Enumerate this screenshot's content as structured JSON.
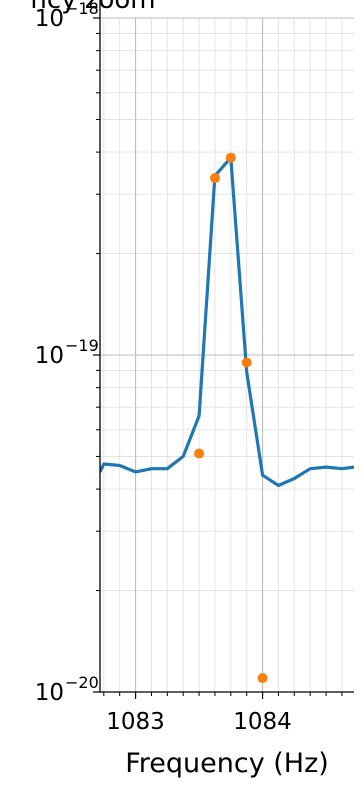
{
  "chart_data": {
    "type": "line",
    "title": "ncy zoom",
    "xlabel": "Frequency (Hz)",
    "ylabel": "",
    "xlim": [
      1082.72,
      1084.72
    ],
    "ylim": [
      1e-20,
      1e-18
    ],
    "y_scale": "log",
    "grid": true,
    "x_major_ticks": [
      1083,
      1084
    ],
    "x_minor_step": 0.125,
    "y_major_ticks": [
      {
        "value": 1e-20,
        "label_base": "10",
        "label_exp": "−20"
      },
      {
        "value": 1e-19,
        "label_base": "10",
        "label_exp": "−19"
      },
      {
        "value": 1e-18,
        "label_base": "10",
        "label_exp": "−18"
      }
    ],
    "series": [
      {
        "kind": "line",
        "color": "#1f77b4",
        "x": [
          1082.72,
          1082.75,
          1082.875,
          1083.0,
          1083.125,
          1083.25,
          1083.375,
          1083.5,
          1083.625,
          1083.75,
          1083.875,
          1084.0,
          1084.125,
          1084.25,
          1084.375,
          1084.5,
          1084.625,
          1084.72
        ],
        "y": [
          4.5e-20,
          4.75e-20,
          4.7e-20,
          4.5e-20,
          4.6e-20,
          4.6e-20,
          5e-20,
          6.6e-20,
          3.4e-19,
          3.85e-19,
          8.9e-20,
          4.4e-20,
          4.1e-20,
          4.3e-20,
          4.6e-20,
          4.65e-20,
          4.6e-20,
          4.65e-20
        ]
      },
      {
        "kind": "scatter",
        "color": "#ff7f0e",
        "x": [
          1083.5,
          1083.625,
          1083.75,
          1083.875,
          1084.0
        ],
        "y": [
          5.1e-20,
          3.35e-19,
          3.85e-19,
          9.5e-20,
          1.1e-20
        ]
      }
    ]
  }
}
